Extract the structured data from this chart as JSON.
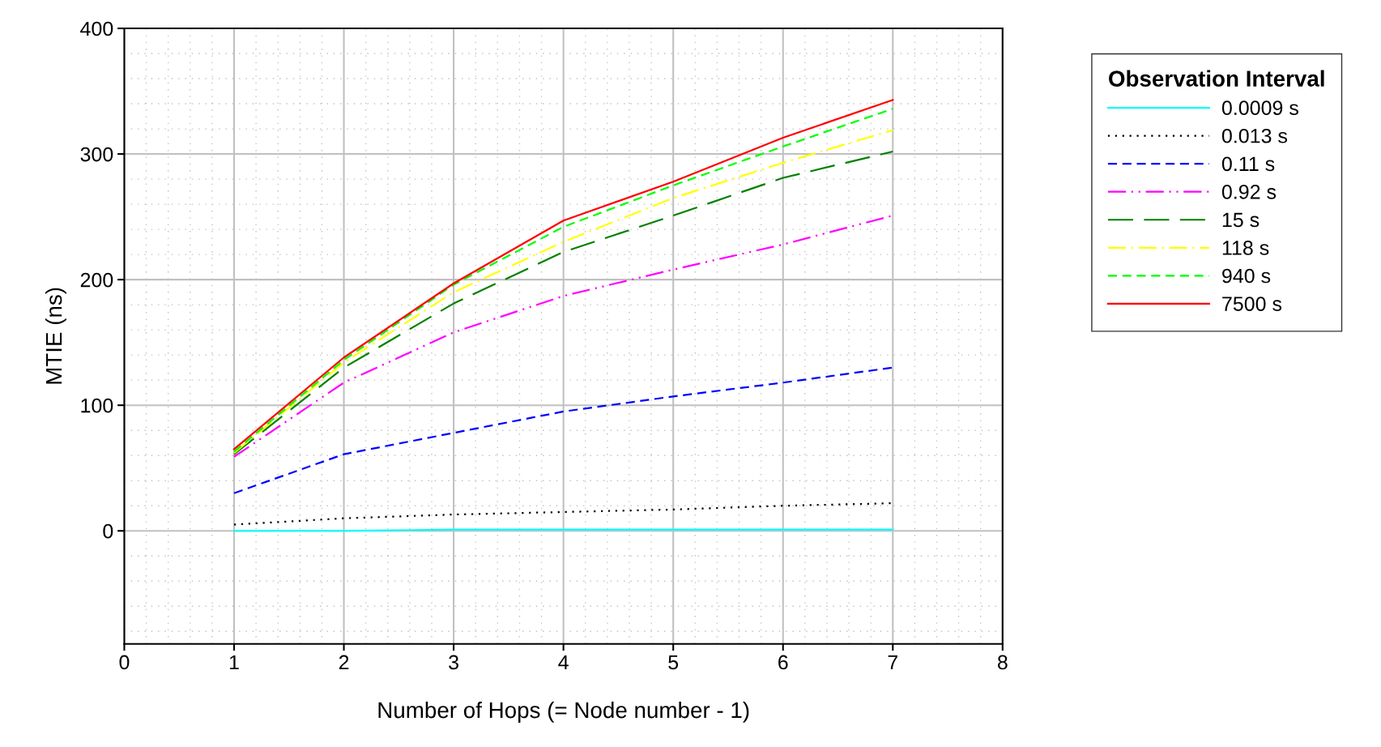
{
  "chart_data": {
    "type": "line",
    "xlabel": "Number of Hops (= Node number - 1)",
    "ylabel": "MTIE (ns)",
    "legend_title": "Observation Interval",
    "x": [
      1,
      2,
      3,
      4,
      5,
      6,
      7
    ],
    "xlim": [
      0,
      8
    ],
    "xticks": [
      0,
      1,
      2,
      3,
      4,
      5,
      6,
      7,
      8
    ],
    "ylim": [
      -90,
      400
    ],
    "yticks": [
      0,
      100,
      200,
      300,
      400
    ],
    "grid": true,
    "legend": "top right",
    "marker": "none",
    "series": [
      {
        "name": "0.0009 s",
        "color": "#00ffff",
        "line_style": "solid",
        "values": [
          0,
          0,
          1,
          1,
          1,
          1,
          1
        ]
      },
      {
        "name": "0.013 s",
        "color": "#000000",
        "line_style": "dotted",
        "values": [
          5,
          10,
          13,
          15,
          17,
          20,
          22
        ]
      },
      {
        "name": "0.11 s",
        "color": "#0000ff",
        "line_style": "dashed",
        "values": [
          30,
          61,
          78,
          95,
          107,
          118,
          130
        ]
      },
      {
        "name": "0.92 s",
        "color": "#ff00ff",
        "line_style": "dashdotdot",
        "values": [
          59,
          118,
          158,
          187,
          208,
          228,
          251
        ]
      },
      {
        "name": "15 s",
        "color": "#008000",
        "line_style": "longdash",
        "values": [
          61,
          130,
          181,
          222,
          251,
          281,
          302
        ]
      },
      {
        "name": "118 s",
        "color": "#ffff00",
        "line_style": "dashdot",
        "values": [
          62,
          134,
          190,
          230,
          265,
          293,
          319
        ]
      },
      {
        "name": "940 s",
        "color": "#00ff00",
        "line_style": "dashed",
        "values": [
          63,
          136,
          196,
          242,
          275,
          306,
          336
        ]
      },
      {
        "name": "7500 s",
        "color": "#ff0000",
        "line_style": "solid",
        "values": [
          65,
          138,
          197,
          247,
          278,
          313,
          343
        ]
      }
    ]
  }
}
